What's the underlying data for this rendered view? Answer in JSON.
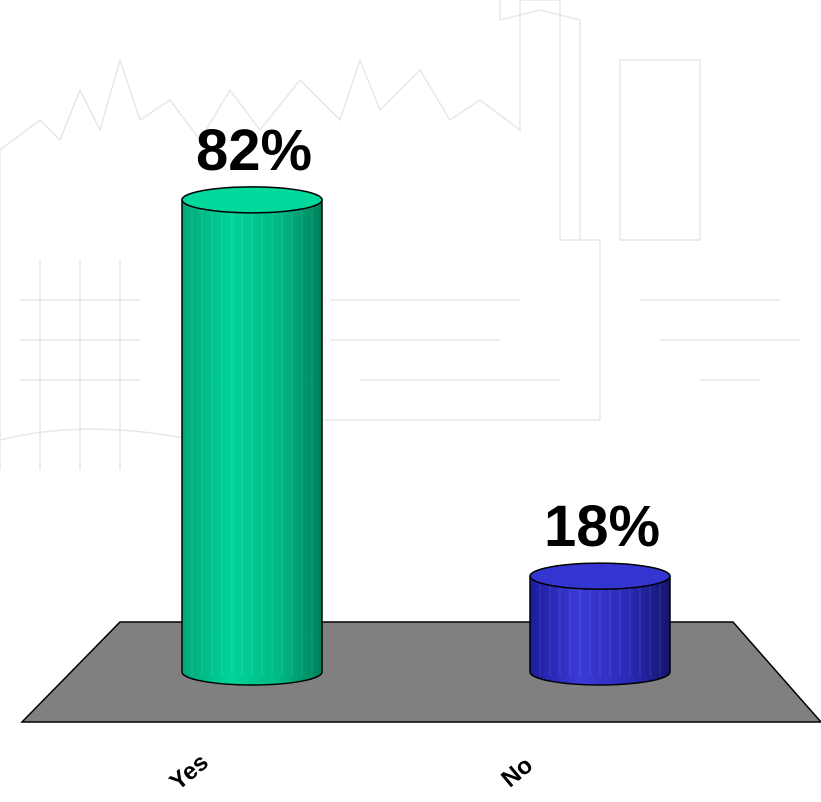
{
  "chart_data": {
    "type": "bar",
    "style": "3d-cylinder",
    "categories": [
      "Yes",
      "No"
    ],
    "values": [
      82,
      18
    ],
    "value_labels": [
      "82%",
      "18%"
    ],
    "title": "",
    "xlabel": "",
    "ylabel": "",
    "ylim": [
      0,
      100
    ],
    "grid": false,
    "legend": "none",
    "colors": {
      "bars": [
        "#00c890",
        "#2828c0"
      ],
      "bar_tops": [
        "#00d89c",
        "#3434d0"
      ],
      "floor": "#808080",
      "background_sketch": "#cfd6d2"
    }
  }
}
